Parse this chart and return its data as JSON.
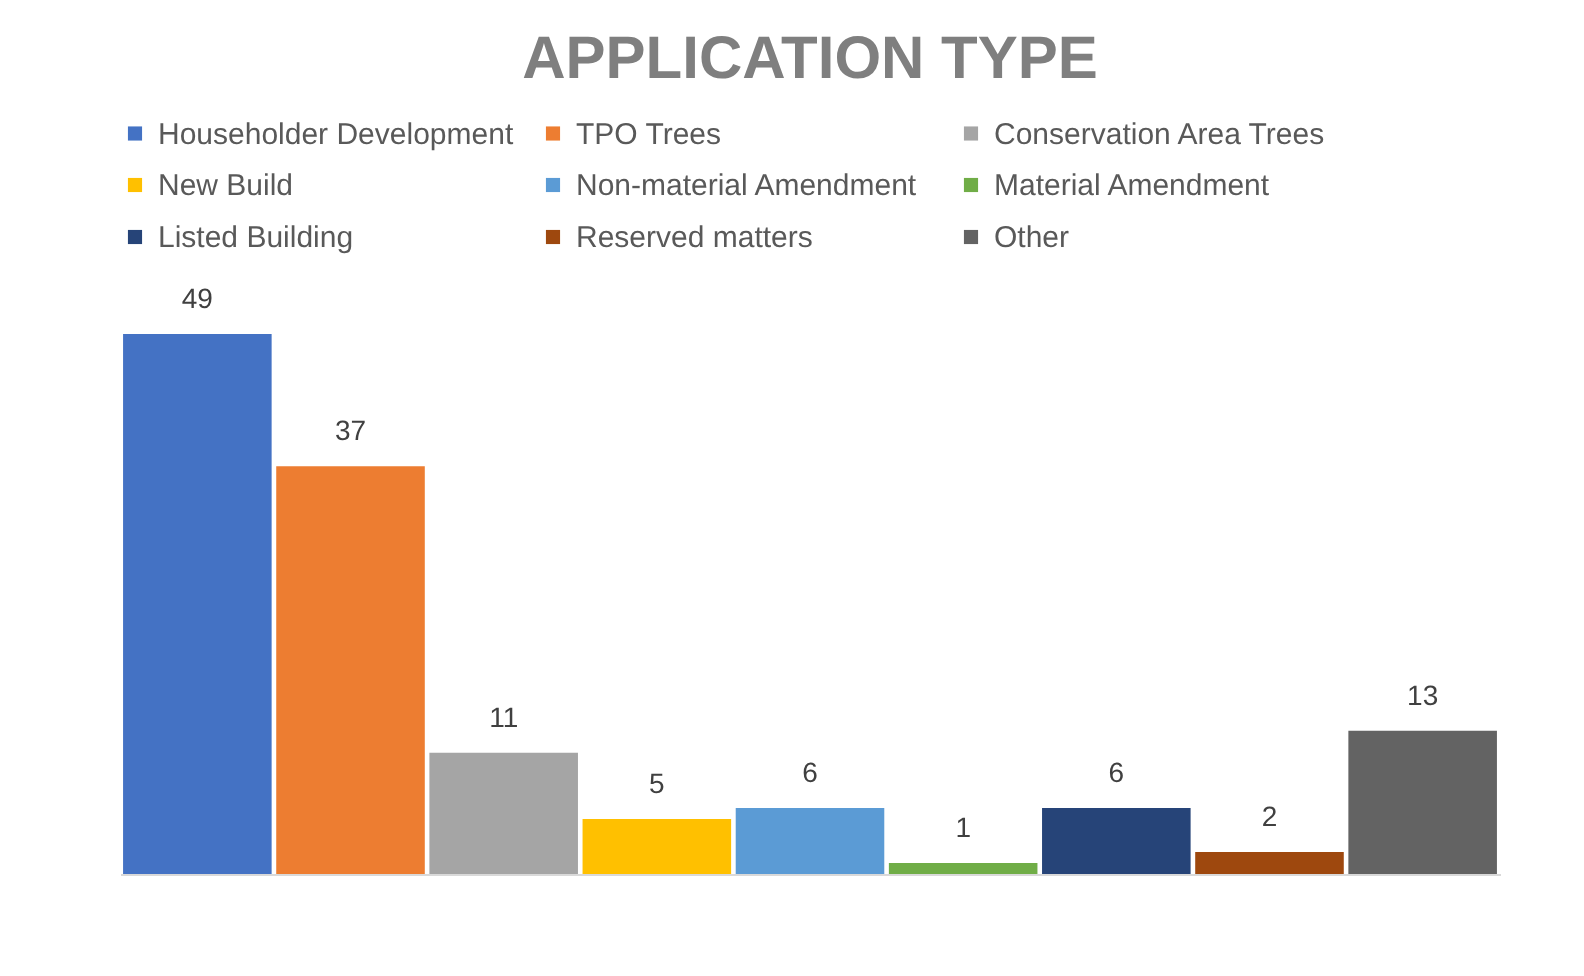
{
  "chart_data": {
    "type": "bar",
    "title": "APPLICATION TYPE",
    "categories": [
      null,
      null,
      null,
      null,
      null,
      null,
      null,
      null,
      null
    ],
    "series": [
      {
        "name": "Householder Development",
        "color": "#4472c4",
        "values": [
          49,
          null,
          null,
          null,
          null,
          null,
          null,
          null,
          null
        ]
      },
      {
        "name": "TPO Trees",
        "color": "#ed7d31",
        "values": [
          null,
          37,
          null,
          null,
          null,
          null,
          null,
          null,
          null
        ]
      },
      {
        "name": "Conservation Area Trees",
        "color": "#a5a5a5",
        "values": [
          null,
          null,
          11,
          null,
          null,
          null,
          null,
          null,
          null
        ]
      },
      {
        "name": "New Build",
        "color": "#ffc000",
        "values": [
          null,
          null,
          null,
          5,
          null,
          null,
          null,
          null,
          null
        ]
      },
      {
        "name": "Non-material Amendment",
        "color": "#5b9bd5",
        "values": [
          null,
          null,
          null,
          null,
          6,
          null,
          null,
          null,
          null
        ]
      },
      {
        "name": "Material Amendment",
        "color": "#70ad47",
        "values": [
          null,
          null,
          null,
          null,
          null,
          1,
          null,
          null,
          null
        ]
      },
      {
        "name": "Listed Building",
        "color": "#264478",
        "values": [
          null,
          null,
          null,
          null,
          null,
          null,
          6,
          null,
          null
        ]
      },
      {
        "name": "Reserved matters",
        "color": "#9e480e",
        "values": [
          null,
          null,
          null,
          null,
          null,
          null,
          null,
          2,
          null
        ]
      },
      {
        "name": "Other",
        "color": "#636363",
        "values": [
          null,
          null,
          null,
          null,
          null,
          null,
          null,
          null,
          13
        ]
      }
    ],
    "stacked": true,
    "data_labels": true,
    "legend": "top",
    "tick_labels": false,
    "grid": false
  }
}
